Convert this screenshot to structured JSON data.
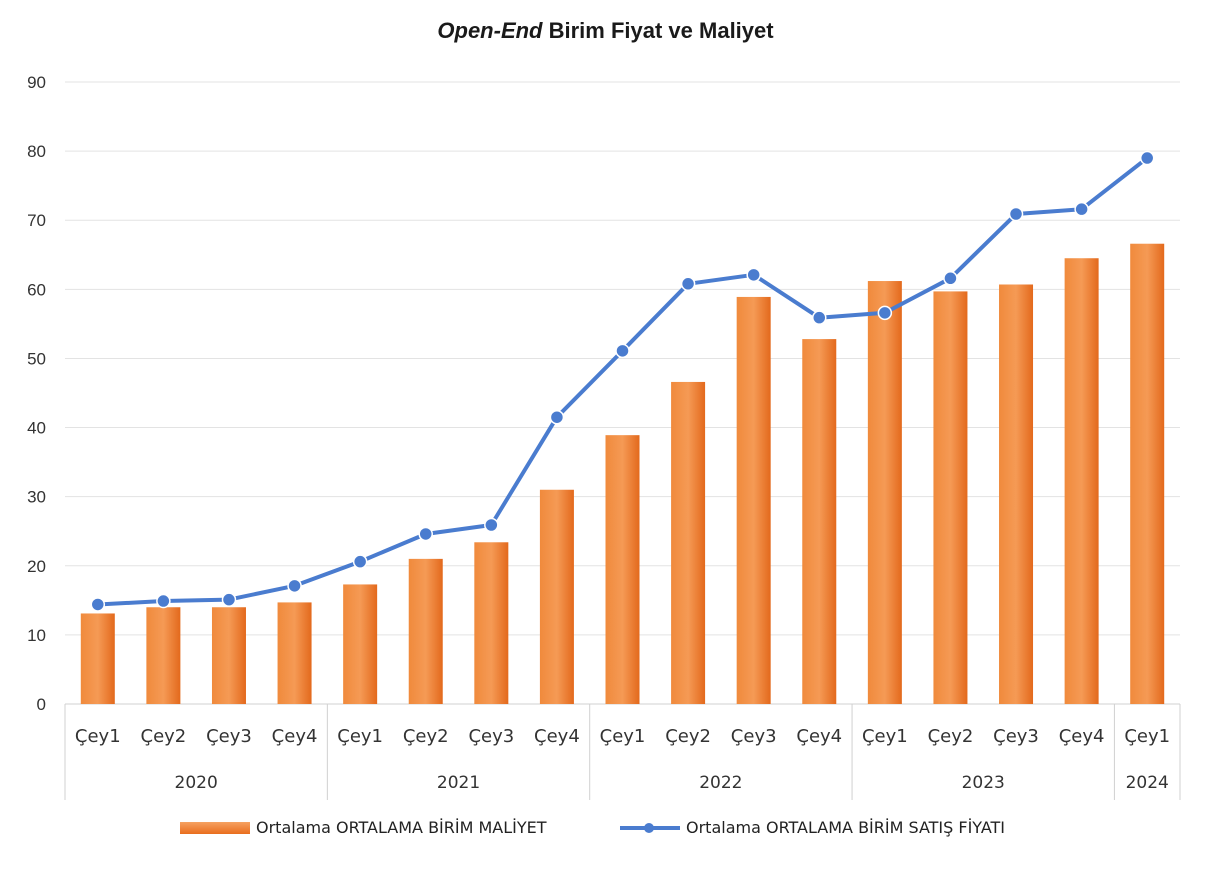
{
  "title_italic": "Open-End",
  "title_rest": " Birim Fiyat ve Maliyet",
  "colors": {
    "bar": "#e97a2c",
    "line": "#4a7ccf",
    "grid": "#e3e3e3",
    "axis": "#d0d0d0",
    "text": "#333333"
  },
  "chart_data": {
    "type": "bar",
    "title": "Open-End Birim Fiyat ve Maliyet",
    "categories": [
      "Çey1",
      "Çey2",
      "Çey3",
      "Çey4",
      "Çey1",
      "Çey2",
      "Çey3",
      "Çey4",
      "Çey1",
      "Çey2",
      "Çey3",
      "Çey4",
      "Çey1",
      "Çey2",
      "Çey3",
      "Çey4",
      "Çey1"
    ],
    "groups": [
      {
        "label": "2020",
        "count": 4
      },
      {
        "label": "2021",
        "count": 4
      },
      {
        "label": "2022",
        "count": 4
      },
      {
        "label": "2023",
        "count": 4
      },
      {
        "label": "2024",
        "count": 1
      }
    ],
    "series": [
      {
        "name": "Ortalama ORTALAMA BİRİM MALİYET",
        "type": "bar",
        "values": [
          13.1,
          14.0,
          14.0,
          14.7,
          17.3,
          21.0,
          23.4,
          31.0,
          38.9,
          46.6,
          58.9,
          52.8,
          61.2,
          59.7,
          60.7,
          64.5,
          66.6
        ]
      },
      {
        "name": "Ortalama ORTALAMA BİRİM SATIŞ FİYATI",
        "type": "line",
        "values": [
          14.4,
          14.9,
          15.1,
          17.1,
          20.6,
          24.6,
          25.9,
          41.5,
          51.1,
          60.8,
          62.1,
          55.9,
          56.6,
          61.6,
          70.9,
          71.6,
          79.0
        ]
      }
    ],
    "yticks": [
      "0",
      "10",
      "20",
      "30",
      "40",
      "50",
      "60",
      "70",
      "80",
      "90"
    ],
    "ylim": [
      0,
      90
    ],
    "grid": true,
    "legend": "bottom"
  }
}
